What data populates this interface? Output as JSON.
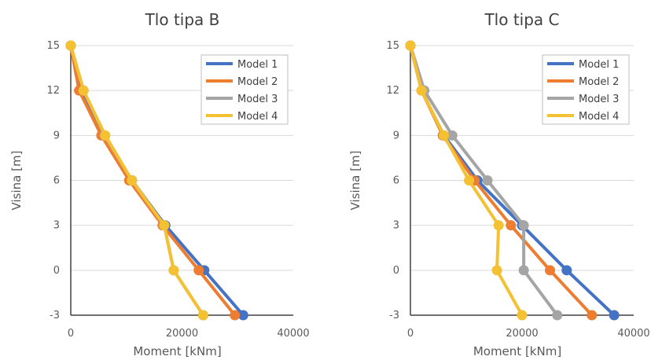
{
  "chart_data": [
    {
      "type": "line",
      "title": "Tlo tipa B",
      "xlabel": "Moment [kNm]",
      "ylabel": "Visina [m]",
      "xlim": [
        0,
        40000
      ],
      "ylim": [
        -3,
        15
      ],
      "xticks": [
        "0",
        "20000",
        "40000"
      ],
      "yticks": [
        "15",
        "12",
        "9",
        "6",
        "3",
        "0",
        "-3"
      ],
      "grid": "horizontal",
      "legend_position": "top-right",
      "y": [
        15,
        12,
        9,
        6,
        3,
        0,
        -3
      ],
      "series": [
        {
          "name": "Model 1",
          "color": "#4472C4",
          "x": [
            0,
            2000,
            6000,
            11000,
            17000,
            24000,
            31000
          ]
        },
        {
          "name": "Model 2",
          "color": "#ED7D31",
          "x": [
            0,
            1500,
            5500,
            10500,
            16500,
            23000,
            29500
          ]
        },
        {
          "name": "Model 3",
          "color": "#A5A5A5",
          "x": [
            0,
            2300,
            6100,
            11000,
            16800,
            18500,
            23800
          ]
        },
        {
          "name": "Model 4",
          "color": "#F4C133",
          "x": [
            0,
            2300,
            6200,
            11000,
            16800,
            18500,
            23800
          ]
        }
      ]
    },
    {
      "type": "line",
      "title": "Tlo tipa C",
      "xlabel": "Moment [kNm]",
      "ylabel": "Visina [m]",
      "xlim": [
        0,
        40000
      ],
      "ylim": [
        -3,
        15
      ],
      "xticks": [
        "0",
        "20000",
        "40000"
      ],
      "yticks": [
        "15",
        "12",
        "9",
        "6",
        "3",
        "0",
        "-3"
      ],
      "grid": "horizontal",
      "legend_position": "top-right",
      "y": [
        15,
        12,
        9,
        6,
        3,
        0,
        -3
      ],
      "series": [
        {
          "name": "Model 1",
          "color": "#4472C4",
          "x": [
            0,
            2000,
            6000,
            12000,
            20000,
            28000,
            36500
          ]
        },
        {
          "name": "Model 2",
          "color": "#ED7D31",
          "x": [
            0,
            2000,
            5800,
            11500,
            18000,
            25000,
            32500
          ]
        },
        {
          "name": "Model 3",
          "color": "#A5A5A5",
          "x": [
            0,
            2500,
            7500,
            13800,
            20300,
            20300,
            26300
          ]
        },
        {
          "name": "Model 4",
          "color": "#F4C133",
          "x": [
            0,
            2000,
            6000,
            10500,
            15800,
            15500,
            20000
          ]
        }
      ]
    }
  ]
}
